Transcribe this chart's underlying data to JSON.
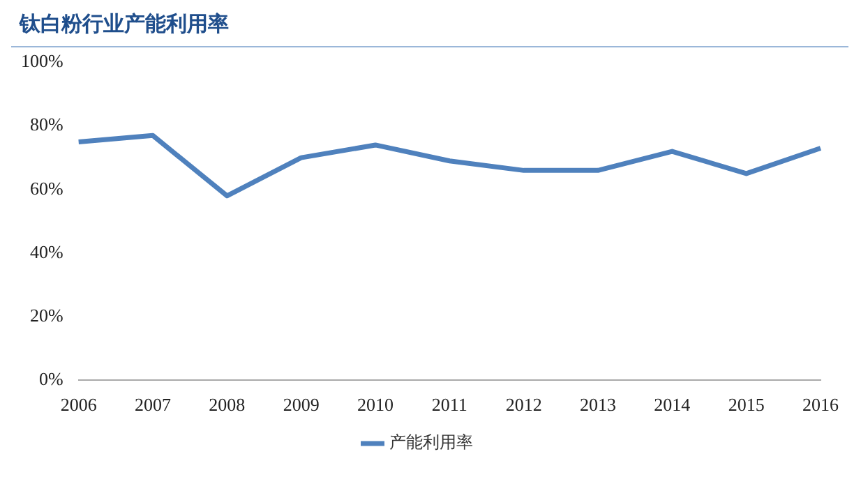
{
  "chart_data": {
    "type": "line",
    "title": "钛白粉行业产能利用率",
    "categories": [
      "2006",
      "2007",
      "2008",
      "2009",
      "2010",
      "2011",
      "2012",
      "2013",
      "2014",
      "2015",
      "2016"
    ],
    "series": [
      {
        "name": "产能利用率",
        "color": "#4f81bd",
        "values": [
          75,
          77,
          58,
          70,
          74,
          69,
          66,
          66,
          72,
          65,
          73
        ]
      }
    ],
    "ylim": [
      0,
      100
    ],
    "yticks": [
      {
        "value": 0,
        "label": "0%"
      },
      {
        "value": 20,
        "label": "20%"
      },
      {
        "value": 40,
        "label": "40%"
      },
      {
        "value": 60,
        "label": "60%"
      },
      {
        "value": 80,
        "label": "80%"
      },
      {
        "value": 100,
        "label": "100%"
      }
    ],
    "grid": false,
    "legend": "bottom",
    "marker": "none",
    "line_style": "solid"
  }
}
